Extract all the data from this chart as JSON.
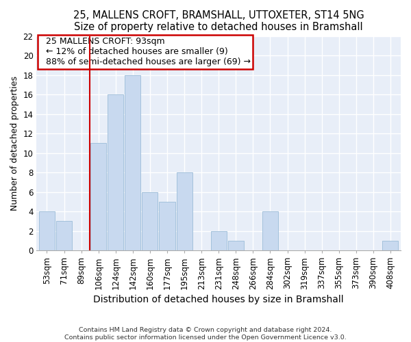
{
  "title": "25, MALLENS CROFT, BRAMSHALL, UTTOXETER, ST14 5NG",
  "subtitle": "Size of property relative to detached houses in Bramshall",
  "xlabel": "Distribution of detached houses by size in Bramshall",
  "ylabel": "Number of detached properties",
  "categories": [
    "53sqm",
    "71sqm",
    "89sqm",
    "106sqm",
    "124sqm",
    "142sqm",
    "160sqm",
    "177sqm",
    "195sqm",
    "213sqm",
    "231sqm",
    "248sqm",
    "266sqm",
    "284sqm",
    "302sqm",
    "319sqm",
    "337sqm",
    "355sqm",
    "373sqm",
    "390sqm",
    "408sqm"
  ],
  "values": [
    4,
    3,
    0,
    11,
    16,
    18,
    6,
    5,
    8,
    0,
    2,
    1,
    0,
    4,
    0,
    0,
    0,
    0,
    0,
    0,
    1
  ],
  "bar_color": "#c8d9ef",
  "bar_edge_color": "#9bbcd8",
  "subject_label": "25 MALLENS CROFT: 93sqm",
  "annotation_line1": "← 12% of detached houses are smaller (9)",
  "annotation_line2": "88% of semi-detached houses are larger (69) →",
  "annotation_box_color": "#ffffff",
  "annotation_box_edge": "#cc0000",
  "vline_color": "#cc0000",
  "ylim": [
    0,
    22
  ],
  "yticks": [
    0,
    2,
    4,
    6,
    8,
    10,
    12,
    14,
    16,
    18,
    20,
    22
  ],
  "title_fontsize": 10.5,
  "subtitle_fontsize": 9.5,
  "xlabel_fontsize": 10,
  "ylabel_fontsize": 9,
  "tick_fontsize": 8.5,
  "annotation_fontsize": 9,
  "footnote1": "Contains HM Land Registry data © Crown copyright and database right 2024.",
  "footnote2": "Contains public sector information licensed under the Open Government Licence v3.0.",
  "bg_color": "#ffffff",
  "plot_bg_color": "#e8eef8",
  "grid_color": "#ffffff"
}
